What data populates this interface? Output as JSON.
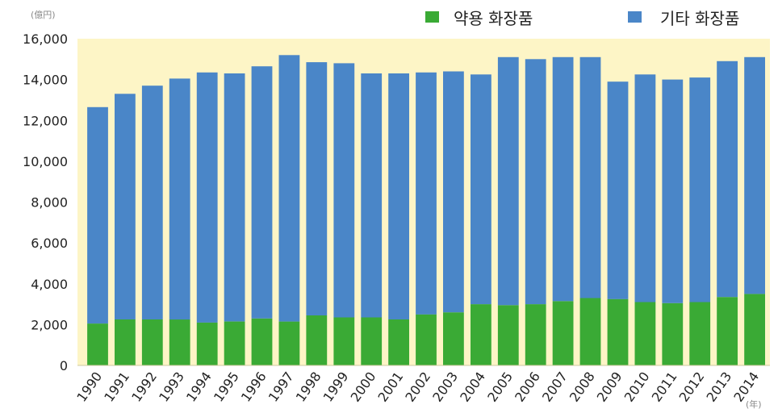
{
  "chart_data": {
    "type": "bar",
    "stacked": true,
    "y_unit": "(億円)",
    "x_unit": "(年)",
    "categories": [
      "1990",
      "1991",
      "1992",
      "1993",
      "1994",
      "1995",
      "1996",
      "1997",
      "1998",
      "1999",
      "2000",
      "2001",
      "2002",
      "2003",
      "2004",
      "2005",
      "2006",
      "2007",
      "2008",
      "2009",
      "2010",
      "2011",
      "2012",
      "2013",
      "2014"
    ],
    "series": [
      {
        "name": "약용 화장품",
        "color": "#3aaa35",
        "values": [
          2050,
          2250,
          2250,
          2250,
          2100,
          2150,
          2300,
          2150,
          2450,
          2350,
          2350,
          2250,
          2500,
          2600,
          3000,
          2950,
          3000,
          3150,
          3300,
          3250,
          3100,
          3050,
          3100,
          3350,
          3500
        ]
      },
      {
        "name": "기타 화장품",
        "color": "#4a86c8",
        "values": [
          10600,
          11050,
          11450,
          11800,
          12250,
          12150,
          12350,
          13050,
          12400,
          12450,
          11950,
          12050,
          11850,
          11800,
          11250,
          12150,
          12000,
          11950,
          11800,
          10650,
          11150,
          10950,
          11000,
          11550,
          11600
        ]
      }
    ],
    "ylim": [
      0,
      16000
    ],
    "yticks": [
      "0",
      "2,000",
      "4,000",
      "6,000",
      "8,000",
      "10,000",
      "12,000",
      "14,000",
      "16,000"
    ],
    "ytick_values": [
      0,
      2000,
      4000,
      6000,
      8000,
      10000,
      12000,
      14000,
      16000
    ],
    "grid": false,
    "legend_position": "top-right",
    "plot_background": "#fdf5c6"
  }
}
